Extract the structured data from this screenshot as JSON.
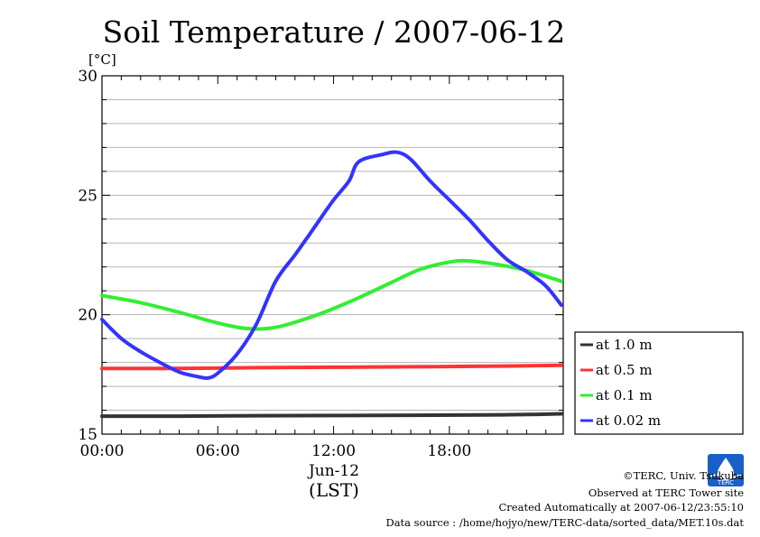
{
  "chart_data": {
    "type": "line",
    "title": "Soil Temperature / 2007-06-12",
    "ylabel": "[°C]",
    "xlabel": "(LST)",
    "date_label": "Jun-12",
    "ylim": [
      15,
      30
    ],
    "xlim": [
      0,
      23.9
    ],
    "yticks": [
      {
        "value": 15,
        "label": "15"
      },
      {
        "value": 20,
        "label": "20"
      },
      {
        "value": 25,
        "label": "25"
      },
      {
        "value": 30,
        "label": "30"
      }
    ],
    "xticks": [
      {
        "value": 0,
        "label": "00:00"
      },
      {
        "value": 6,
        "label": "06:00"
      },
      {
        "value": 12,
        "label": "12:00"
      },
      {
        "value": 18,
        "label": "18:00"
      }
    ],
    "grid": true,
    "legend_position": "right",
    "series": [
      {
        "name": "at 1.0 m",
        "color": "#333333",
        "points": [
          [
            0,
            15.75
          ],
          [
            4,
            15.75
          ],
          [
            8,
            15.77
          ],
          [
            12,
            15.78
          ],
          [
            16,
            15.79
          ],
          [
            20,
            15.8
          ],
          [
            22,
            15.82
          ],
          [
            23.8,
            15.85
          ]
        ]
      },
      {
        "name": "at 0.5 m",
        "color": "#ff3333",
        "points": [
          [
            0,
            17.75
          ],
          [
            4,
            17.75
          ],
          [
            8,
            17.78
          ],
          [
            12,
            17.8
          ],
          [
            16,
            17.82
          ],
          [
            20,
            17.84
          ],
          [
            23.8,
            17.88
          ]
        ]
      },
      {
        "name": "at 0.1 m",
        "color": "#33ee33",
        "points": [
          [
            0,
            20.8
          ],
          [
            2,
            20.5
          ],
          [
            4,
            20.1
          ],
          [
            6,
            19.65
          ],
          [
            7.5,
            19.42
          ],
          [
            9,
            19.47
          ],
          [
            11,
            19.95
          ],
          [
            13,
            20.6
          ],
          [
            15,
            21.35
          ],
          [
            16.5,
            21.9
          ],
          [
            18,
            22.2
          ],
          [
            19,
            22.25
          ],
          [
            20.5,
            22.1
          ],
          [
            22,
            21.85
          ],
          [
            23.8,
            21.4
          ]
        ]
      },
      {
        "name": "at 0.02 m",
        "color": "#3333ff",
        "points": [
          [
            0,
            19.8
          ],
          [
            1,
            19.0
          ],
          [
            2,
            18.45
          ],
          [
            3,
            18.0
          ],
          [
            4,
            17.6
          ],
          [
            5,
            17.4
          ],
          [
            5.5,
            17.35
          ],
          [
            6,
            17.55
          ],
          [
            7,
            18.35
          ],
          [
            8,
            19.6
          ],
          [
            9,
            21.4
          ],
          [
            10,
            22.5
          ],
          [
            10.7,
            23.3
          ],
          [
            11.3,
            24.0
          ],
          [
            12,
            24.8
          ],
          [
            12.8,
            25.6
          ],
          [
            13.3,
            26.4
          ],
          [
            14.5,
            26.7
          ],
          [
            15.3,
            26.8
          ],
          [
            16,
            26.5
          ],
          [
            17,
            25.6
          ],
          [
            18,
            24.8
          ],
          [
            19,
            24.0
          ],
          [
            20,
            23.1
          ],
          [
            21,
            22.3
          ],
          [
            22,
            21.8
          ],
          [
            23,
            21.2
          ],
          [
            23.8,
            20.4
          ]
        ]
      }
    ]
  },
  "credits": {
    "logo_text": "TERC",
    "copyright": "©TERC, Univ. Tsukuba",
    "site": "Observed at TERC Tower site",
    "created": "Created Automatically at 2007-06-12/23:55:10",
    "source": "Data source : /home/hojyo/new/TERC-data/sorted_data/MET.10s.dat"
  }
}
